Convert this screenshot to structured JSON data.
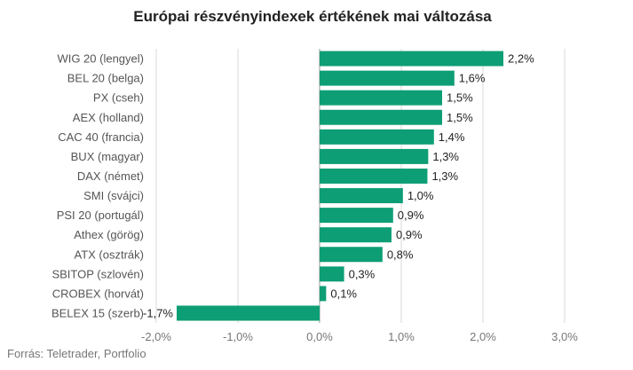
{
  "chart_data": {
    "type": "bar",
    "orientation": "horizontal",
    "title": "Európai részvényindexek értékének mai változása",
    "categories": [
      "WIG 20 (lengyel)",
      "BEL 20 (belga)",
      "PX (cseh)",
      "AEX (holland)",
      "CAC 40 (francia)",
      "BUX (magyar)",
      "DAX (német)",
      "SMI (svájci)",
      "PSI 20 (portugál)",
      "Athex (görög)",
      "ATX (osztrák)",
      "SBITOP (szlovén)",
      "CROBEX (horvát)",
      "BELEX 15 (szerb)"
    ],
    "values": [
      2.25,
      1.65,
      1.5,
      1.5,
      1.4,
      1.33,
      1.32,
      1.02,
      0.9,
      0.88,
      0.77,
      0.3,
      0.08,
      -1.75
    ],
    "value_labels": [
      "2,2%",
      "1,6%",
      "1,5%",
      "1,5%",
      "1,4%",
      "1,3%",
      "1,3%",
      "1,0%",
      "0,9%",
      "0,9%",
      "0,8%",
      "0,3%",
      "0,1%",
      "-1,7%"
    ],
    "xlim": [
      -2.0,
      3.0
    ],
    "ticks": [
      -2.0,
      -1.0,
      0.0,
      1.0,
      2.0,
      3.0
    ],
    "tick_labels": [
      "-2,0%",
      "-1,0%",
      "0,0%",
      "1,0%",
      "2,0%",
      "3,0%"
    ],
    "grid": true,
    "bar_color": "#0e9e75",
    "grid_color": "#d9d9d9"
  },
  "source": "Forrás: Teletrader, Portfolio"
}
